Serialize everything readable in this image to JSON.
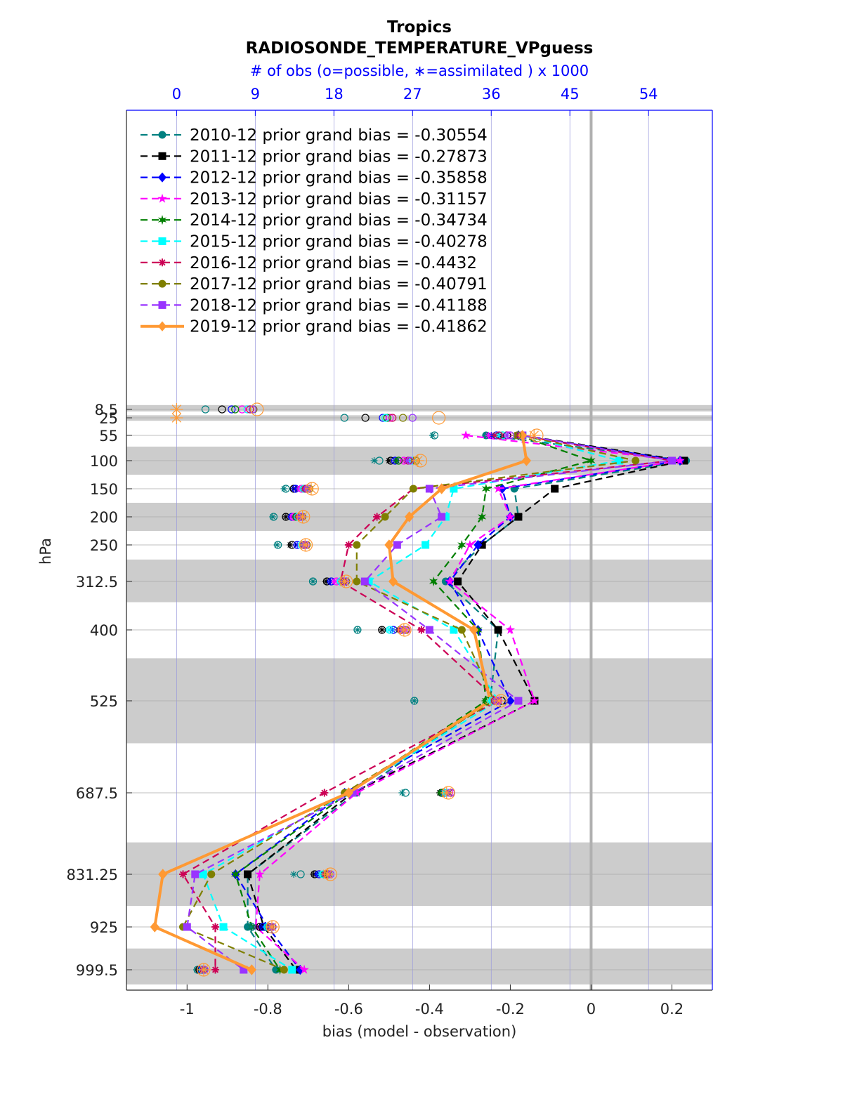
{
  "chart_data": {
    "type": "line",
    "title": "Tropics",
    "subtitle": "RADIOSONDE_TEMPERATURE_VPguess",
    "top_axis_label": "# of obs (o=possible, ∗=assimilated ) x 1000",
    "xlabel": "bias (model - observation)",
    "ylabel": "hPa",
    "xlim": [
      -1.15,
      0.3
    ],
    "x_ticks": [
      -1,
      -0.8,
      -0.6,
      -0.4,
      -0.2,
      0,
      0.2
    ],
    "x_tick_labels": [
      "-1",
      "-0.8",
      "-0.6",
      "-0.4",
      "-0.2",
      "0",
      "0.2"
    ],
    "top_xlim": [
      -5.74,
      61.3
    ],
    "top_ticks": [
      0,
      9,
      18,
      27,
      36,
      45,
      54
    ],
    "top_tick_labels": [
      "0",
      "9",
      "18",
      "27",
      "36",
      "45",
      "54"
    ],
    "levels": [
      8.5,
      25,
      55,
      100,
      150,
      200,
      250,
      312.5,
      400,
      525,
      687.5,
      831.25,
      925,
      999.5
    ],
    "level_labels": [
      "8.5",
      "25",
      "55",
      "100",
      "150",
      "200",
      "250",
      "312.5",
      "400",
      "525",
      "687.5",
      "831.25",
      "925",
      "999.5"
    ],
    "shaded_bands": [
      [
        0,
        12.5
      ],
      [
        20,
        30
      ],
      [
        75,
        125
      ],
      [
        175,
        225
      ],
      [
        275,
        350
      ],
      [
        450,
        600
      ],
      [
        775,
        887.5
      ],
      [
        962.5,
        1025
      ]
    ],
    "zero_line_x": 0,
    "grid": true,
    "legend_position": "top-left",
    "series": [
      {
        "name": "2010-12 prior grand bias = -0.30554",
        "color": "#008080",
        "marker": "circle",
        "line": "dashed",
        "values": [
          null,
          null,
          -0.26,
          0.235,
          -0.19,
          -0.18,
          -0.27,
          -0.36,
          -0.23,
          -0.25,
          -0.58,
          -0.85,
          -0.85,
          -0.78
        ],
        "obs_possible": [
          3.3,
          19.2,
          29.5,
          23.2,
          12.5,
          11.1,
          11.6,
          15.6,
          20.7,
          27.2,
          26.2,
          14.2,
          8.6,
          2.4
        ],
        "obs_assimilated": [
          null,
          null,
          29.3,
          22.6,
          12.3,
          11.0,
          11.5,
          15.6,
          20.7,
          27.2,
          25.8,
          13.4,
          8.5,
          2.3
        ]
      },
      {
        "name": "2011-12 prior grand bias = -0.27873",
        "color": "#000000",
        "marker": "square",
        "line": "dashed",
        "values": [
          null,
          null,
          -0.17,
          0.23,
          -0.09,
          -0.18,
          -0.27,
          -0.33,
          -0.23,
          -0.14,
          -0.59,
          -0.85,
          -0.81,
          -0.73
        ],
        "obs_possible": [
          5.2,
          21.6,
          37.8,
          24.5,
          13.4,
          12.5,
          13.2,
          17.2,
          23.5,
          37.2,
          30.3,
          15.8,
          9.5,
          2.6
        ],
        "obs_assimilated": [
          null,
          null,
          37.0,
          24.3,
          13.4,
          12.5,
          13.0,
          17.1,
          23.5,
          36.8,
          30.1,
          15.7,
          9.5,
          2.6
        ]
      },
      {
        "name": "2012-12 prior grand bias = -0.35858",
        "color": "#0000ff",
        "marker": "diamond",
        "line": "dashed",
        "values": [
          null,
          null,
          -0.18,
          0.22,
          -0.22,
          -0.2,
          -0.28,
          -0.35,
          -0.28,
          -0.2,
          -0.61,
          -0.88,
          -0.8,
          -0.72
        ],
        "obs_possible": [
          6.3,
          23.6,
          36.6,
          25.0,
          13.6,
          13.2,
          13.8,
          17.7,
          24.8,
          36.8,
          30.7,
          16.3,
          9.9,
          2.8
        ],
        "obs_assimilated": [
          null,
          null,
          36.0,
          25.0,
          13.6,
          13.1,
          13.8,
          17.6,
          24.7,
          36.4,
          30.3,
          16.1,
          9.9,
          2.8
        ]
      },
      {
        "name": "2013-12 prior grand bias = -0.31157",
        "color": "#ff00ff",
        "marker": "star",
        "line": "dashed",
        "values": [
          null,
          null,
          -0.31,
          0.22,
          -0.23,
          -0.2,
          -0.3,
          -0.35,
          -0.2,
          -0.14,
          -0.58,
          -0.82,
          -0.83,
          -0.71
        ],
        "obs_possible": [
          7.5,
          24.4,
          37.9,
          26.0,
          14.3,
          13.4,
          14.3,
          18.3,
          26.3,
          36.8,
          31.2,
          17.1,
          10.6,
          3.0
        ],
        "obs_assimilated": [
          null,
          null,
          35.7,
          25.8,
          14.1,
          13.3,
          14.3,
          18.1,
          26.2,
          36.8,
          31.1,
          17.0,
          10.6,
          3.0
        ]
      },
      {
        "name": "2014-12 prior grand bias = -0.34734",
        "color": "#007f00",
        "marker": "hexagram",
        "line": "dashed",
        "values": [
          null,
          null,
          -0.18,
          0.0,
          -0.26,
          -0.27,
          -0.32,
          -0.39,
          -0.28,
          -0.26,
          -0.6,
          -0.88,
          -0.84,
          -0.77
        ],
        "obs_possible": [
          6.7,
          24.1,
          37.3,
          25.4,
          14.6,
          13.7,
          14.6,
          18.8,
          25.7,
          35.5,
          30.4,
          16.9,
          10.6,
          3.0
        ],
        "obs_assimilated": [
          null,
          null,
          36.4,
          25.2,
          14.5,
          13.6,
          14.5,
          18.7,
          25.4,
          35.3,
          30.2,
          16.5,
          10.5,
          2.9
        ]
      },
      {
        "name": "2015-12 prior grand bias = -0.40278",
        "color": "#00ffff",
        "marker": "square",
        "line": "dashed",
        "values": [
          null,
          null,
          -0.17,
          0.07,
          -0.34,
          -0.36,
          -0.41,
          -0.55,
          -0.34,
          -0.23,
          -0.6,
          -0.96,
          -0.91,
          -0.74
        ],
        "obs_possible": [
          8.1,
          23.9,
          37.3,
          27.0,
          14.6,
          13.9,
          14.3,
          18.8,
          24.4,
          36.1,
          30.9,
          16.8,
          10.4,
          3.0
        ],
        "obs_assimilated": [
          null,
          null,
          36.7,
          26.7,
          14.4,
          13.9,
          14.3,
          18.7,
          24.3,
          35.8,
          30.6,
          16.5,
          10.3,
          3.0
        ]
      },
      {
        "name": "2016-12 prior grand bias = -0.4432",
        "color": "#cc0055",
        "marker": "asterisk",
        "line": "dashed",
        "values": [
          null,
          null,
          -0.18,
          0.2,
          -0.44,
          -0.53,
          -0.6,
          -0.62,
          -0.42,
          -0.23,
          -0.66,
          -1.01,
          -0.93,
          -0.93
        ],
        "obs_possible": [
          8.4,
          24.7,
          36.9,
          26.5,
          14.8,
          14.1,
          14.6,
          19.1,
          25.7,
          36.4,
          31.4,
          17.2,
          10.7,
          3.1
        ],
        "obs_assimilated": [
          null,
          null,
          36.4,
          26.3,
          14.6,
          13.9,
          14.6,
          19.0,
          25.5,
          36.4,
          31.2,
          16.9,
          10.6,
          3.0
        ]
      },
      {
        "name": "2017-12 prior grand bias = -0.40791",
        "color": "#7f7f00",
        "marker": "circle",
        "line": "dashed",
        "values": [
          null,
          null,
          -0.17,
          0.11,
          -0.44,
          -0.51,
          -0.58,
          -0.58,
          -0.32,
          -0.24,
          -0.61,
          -0.94,
          -1.01,
          -0.76
        ],
        "obs_possible": [
          8.8,
          25.9,
          39.0,
          27.4,
          15.2,
          14.4,
          14.9,
          19.4,
          26.2,
          36.6,
          31.4,
          17.4,
          10.9,
          3.2
        ],
        "obs_assimilated": [
          null,
          null,
          38.7,
          27.1,
          15.1,
          14.3,
          14.7,
          19.1,
          26.0,
          36.4,
          31.2,
          17.1,
          10.8,
          3.1
        ]
      },
      {
        "name": "2018-12 prior grand bias = -0.41188",
        "color": "#9933ff",
        "marker": "square",
        "line": "dashed",
        "values": [
          null,
          null,
          -0.17,
          0.2,
          -0.4,
          -0.37,
          -0.48,
          -0.56,
          -0.4,
          -0.18,
          -0.59,
          -0.98,
          -1.0,
          -0.86
        ],
        "obs_possible": [
          8.7,
          27.0,
          38.2,
          26.7,
          15.0,
          14.3,
          14.8,
          19.3,
          26.0,
          36.6,
          31.4,
          17.6,
          11.0,
          3.2
        ],
        "obs_assimilated": [
          null,
          null,
          37.8,
          26.4,
          14.9,
          14.1,
          14.6,
          19.2,
          25.8,
          36.5,
          31.1,
          17.4,
          10.8,
          3.1
        ]
      },
      {
        "name": "2019-12 prior grand bias = -0.41862",
        "color": "#ff9933",
        "marker": "diamond",
        "line": "solid",
        "values": [
          null,
          null,
          -0.17,
          -0.16,
          -0.37,
          -0.45,
          -0.5,
          -0.49,
          -0.29,
          -0.25,
          -0.6,
          -1.06,
          -1.08,
          -0.84
        ],
        "obs_possible": [
          9.2,
          30.0,
          41.2,
          27.9,
          15.5,
          14.5,
          14.8,
          19.4,
          26.1,
          37.1,
          31.1,
          17.6,
          11.0,
          3.1
        ],
        "obs_assimilated": [
          0.0,
          0.0,
          40.9,
          27.6,
          15.4,
          14.4,
          14.7,
          19.2,
          26.0,
          36.9,
          30.9,
          17.3,
          10.9,
          3.1
        ]
      }
    ]
  }
}
